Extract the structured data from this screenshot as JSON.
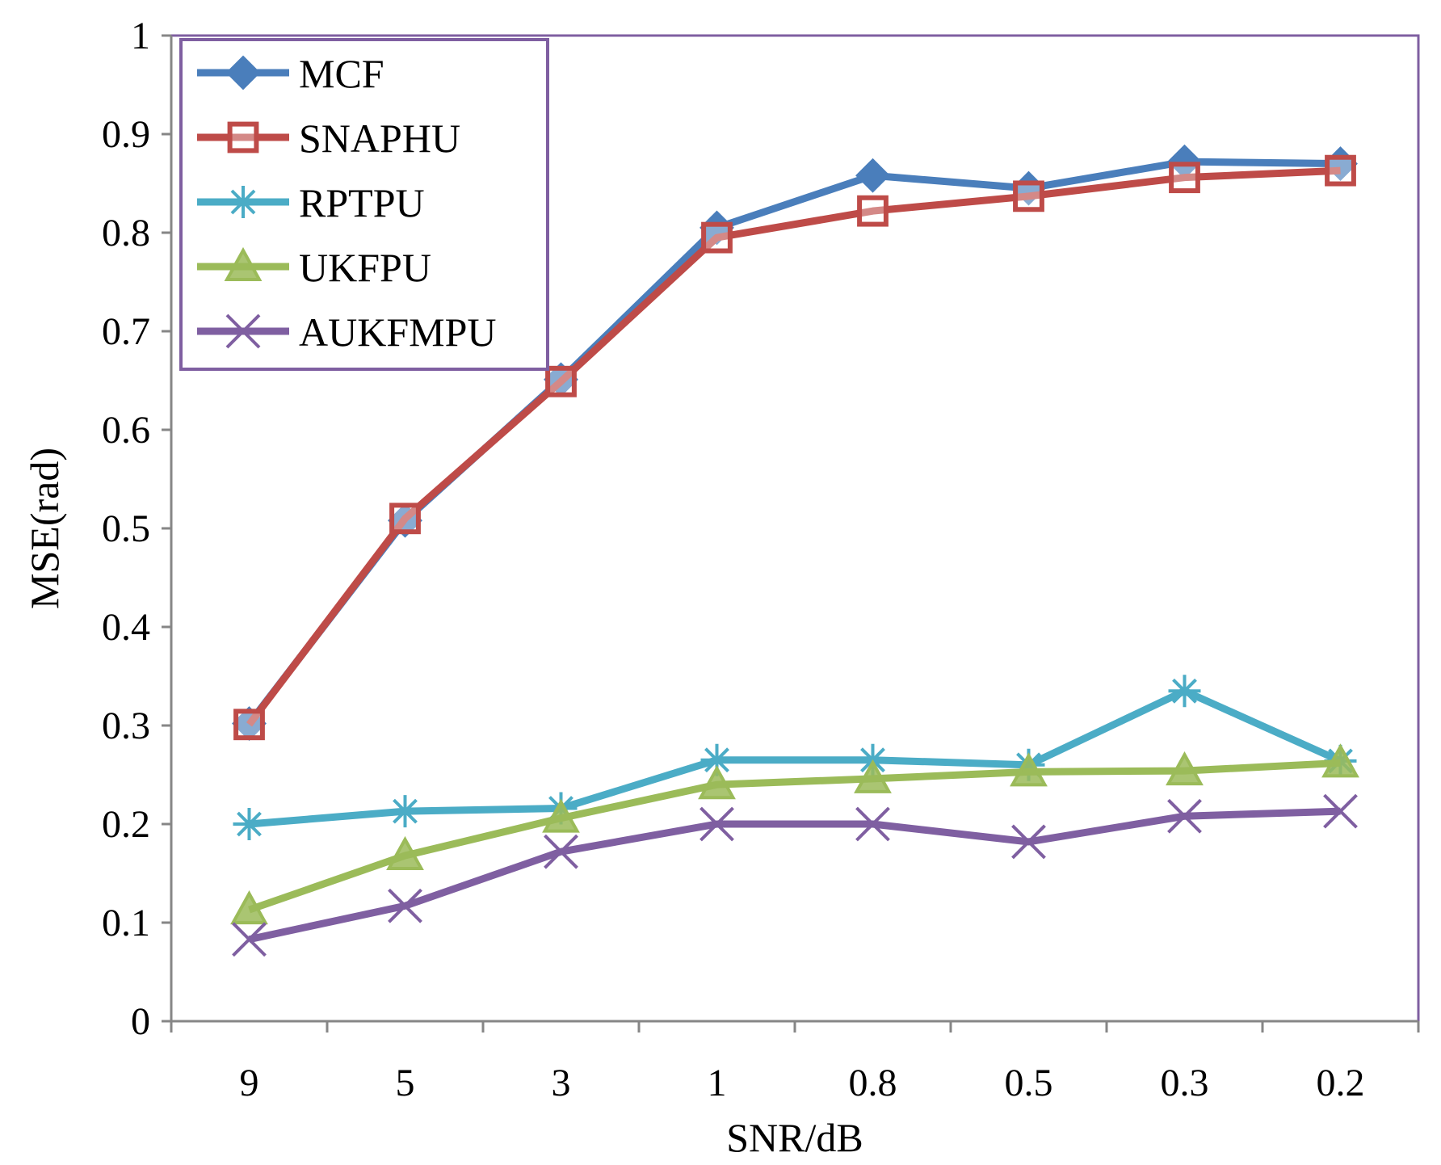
{
  "chart_data": {
    "type": "line",
    "title": "",
    "xlabel": "SNR/dB",
    "ylabel": "MSE(rad)",
    "categories": [
      "9",
      "5",
      "3",
      "1",
      "0.8",
      "0.5",
      "0.3",
      "0.2"
    ],
    "ylim": [
      0,
      1
    ],
    "yticks": [
      "0",
      "0.1",
      "0.2",
      "0.3",
      "0.4",
      "0.5",
      "0.6",
      "0.7",
      "0.8",
      "0.9",
      "1"
    ],
    "grid": false,
    "legend_position": "top-left",
    "series": [
      {
        "name": "MCF",
        "color": "#4a7ebb",
        "marker": "diamond",
        "values": [
          0.302,
          0.508,
          0.651,
          0.805,
          0.858,
          0.845,
          0.872,
          0.87
        ]
      },
      {
        "name": "SNAPHU",
        "color": "#be4b48",
        "marker": "square",
        "values": [
          0.301,
          0.51,
          0.649,
          0.795,
          0.822,
          0.837,
          0.856,
          0.863
        ]
      },
      {
        "name": "RPTPU",
        "color": "#4bacc6",
        "marker": "asterisk",
        "values": [
          0.2,
          0.213,
          0.216,
          0.265,
          0.265,
          0.26,
          0.335,
          0.264
        ]
      },
      {
        "name": "UKFPU",
        "color": "#9bbb59",
        "marker": "triangle",
        "values": [
          0.113,
          0.168,
          0.206,
          0.24,
          0.246,
          0.253,
          0.254,
          0.262
        ]
      },
      {
        "name": "AUKFMPU",
        "color": "#7f5fa1",
        "marker": "x",
        "values": [
          0.083,
          0.117,
          0.172,
          0.2,
          0.2,
          0.182,
          0.208,
          0.213
        ]
      }
    ],
    "legend_border_color": "#7f5fa1",
    "plot_border_color": "#7f5fa1"
  }
}
